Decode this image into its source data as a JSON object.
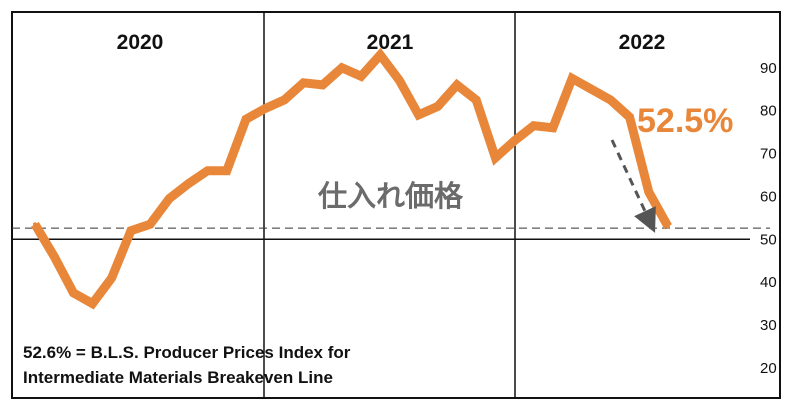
{
  "chart_data": {
    "type": "line",
    "title": "",
    "xlabel": "",
    "ylabel": "",
    "year_labels": [
      "2020",
      "2021",
      "2022"
    ],
    "ylim": [
      13,
      103
    ],
    "yticks": [
      20,
      30,
      40,
      50,
      60,
      70,
      80,
      90
    ],
    "series": [
      {
        "color": "#E8873A",
        "values": [
          53.5,
          46,
          37.5,
          35,
          41,
          52,
          53.5,
          59.5,
          63,
          66,
          66,
          78,
          80.5,
          82.5,
          86.5,
          86,
          90,
          88,
          93,
          87,
          79,
          81,
          86,
          82.5,
          69,
          73,
          76.5,
          76,
          87.5,
          85,
          82.5,
          78.5,
          61,
          53
        ]
      }
    ],
    "reference_line": {
      "value": 52.6,
      "style": "dashed"
    },
    "baseline": {
      "value": 50
    },
    "callout_value": "52.5%",
    "series_label": "仕入れ価格",
    "note_lines": [
      "52.6% = B.L.S. Producer Prices Index for",
      "Intermediate Materials Breakeven Line"
    ],
    "grid": false
  }
}
